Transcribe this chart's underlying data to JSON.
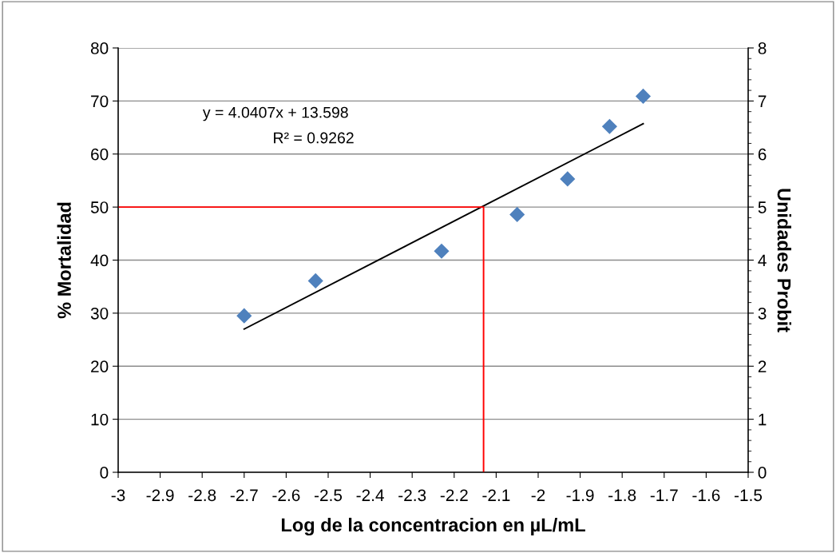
{
  "chart_data": {
    "type": "scatter",
    "xlabel": "Log de la concentracion en µL/mL",
    "ylabel": "% Mortalidad",
    "y2label": "Unidades Probit",
    "x": [
      -2.7,
      -2.53,
      -2.23,
      -2.05,
      -1.93,
      -1.83,
      -1.75
    ],
    "series": [
      {
        "color": "#4f81bd",
        "marker": "diamond",
        "values": [
          29.5,
          36.1,
          41.7,
          48.6,
          55.3,
          65.2,
          70.9
        ]
      },
      {
        "type": "line",
        "color": "#000000",
        "x": [
          -2.7,
          -1.75
        ],
        "values": [
          27.0,
          65.7
        ]
      },
      {
        "type": "line",
        "color": "#ff0000",
        "x": [
          -3,
          -2.13,
          -2.13
        ],
        "values": [
          50,
          50,
          0
        ]
      }
    ],
    "xlim": [
      -3,
      -1.5
    ],
    "xticks": [
      -3,
      -2.9,
      -2.8,
      -2.7,
      -2.6,
      -2.5,
      -2.4,
      -2.3,
      -2.2,
      -2.1,
      -2,
      -1.9,
      -1.8,
      -1.7,
      -1.6,
      -1.5
    ],
    "ylim": [
      0,
      80
    ],
    "yticks": [
      0,
      10,
      20,
      30,
      40,
      50,
      60,
      70,
      80
    ],
    "y2lim": [
      0,
      8
    ],
    "y2ticks": [
      0,
      1,
      2,
      3,
      4,
      5,
      6,
      7,
      8
    ],
    "grid": "y",
    "legend": false,
    "annotations": [
      "y = 4.0407x + 13.598",
      "R² = 0.9262"
    ]
  }
}
